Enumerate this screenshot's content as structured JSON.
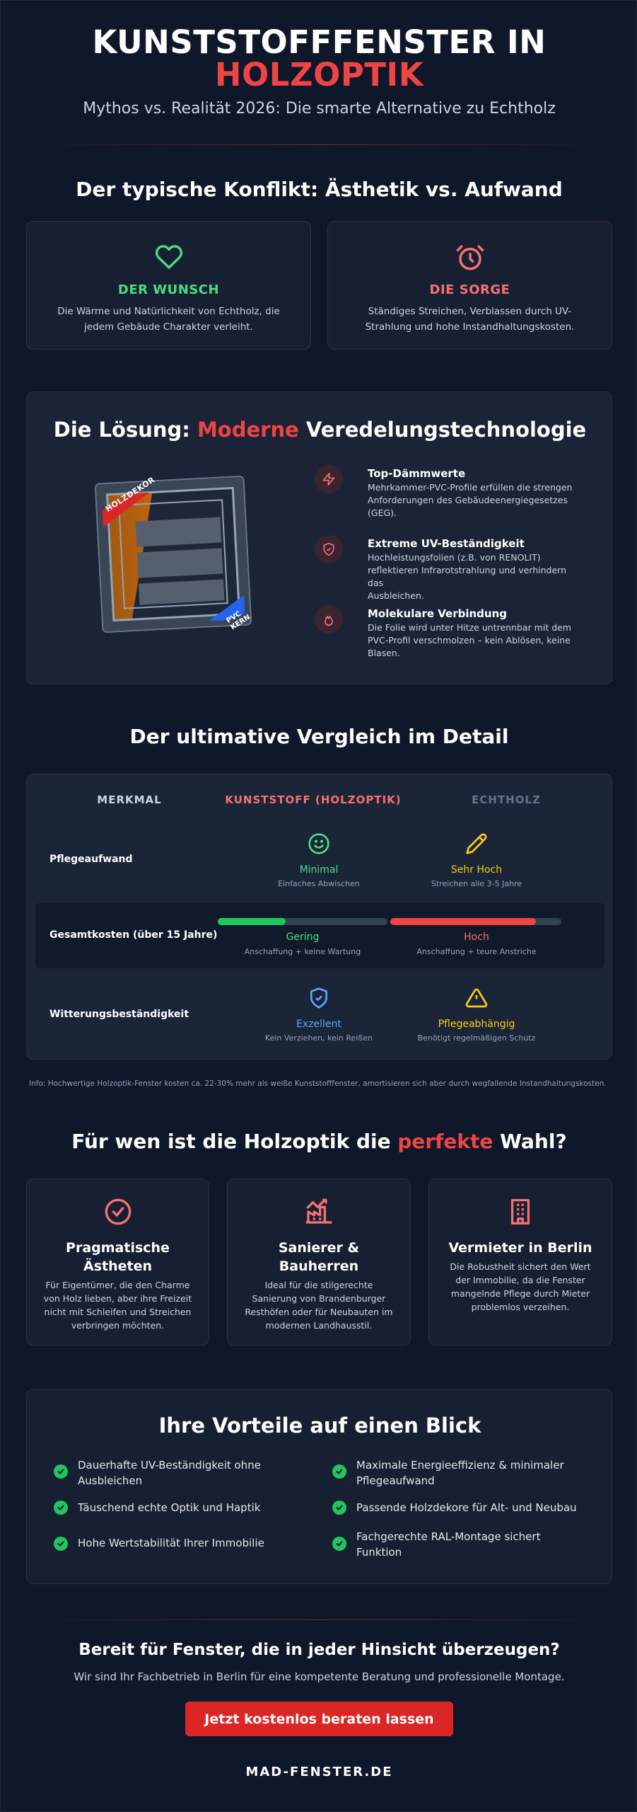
{
  "hero": {
    "title_line1": "KUNSTSTOFFFENSTER IN",
    "title_line2": "HOLZOPTIK",
    "subtitle": "Mythos vs. Realität 2026: Die smarte Alternative zu Echtholz"
  },
  "conflict": {
    "heading": "Der typische Konflikt: Ästhetik vs. Aufwand",
    "wish": {
      "icon": "heart-icon",
      "label": "DER WUNSCH",
      "text_line1": "Die Wärme und Natürlichkeit von Echtholz, die",
      "text_line2": "jedem Gebäude Charakter verleiht."
    },
    "worry": {
      "icon": "clock-alert-icon",
      "label": "DIE SORGE",
      "text_line1": "Ständiges Streichen, Verblassen durch UV-",
      "text_line2": "Strahlung und hohe Instandhaltungskosten."
    }
  },
  "solution": {
    "heading_pre": "Die Lösung: ",
    "heading_accent": "Moderne",
    "heading_post": " Veredelungstechnologie",
    "image_label_top": "HOLZDEKOR",
    "image_label_bottom": "PVC KERN",
    "features": [
      {
        "icon": "lightning-icon",
        "title": "Top-Dämmwerte",
        "line1": "Mehrkammer-PVC-Profile erfüllen die strengen",
        "line2": "Anforderungen des Gebäudeenergiegesetzes",
        "line3": "(GEG)."
      },
      {
        "icon": "shield-icon",
        "title": "Extreme UV-Beständigkeit",
        "line1": "Hochleistungsfolien (z.B. von RENOLIT)",
        "line2": "reflektieren Infrarotstrahlung und verhindern das",
        "line3": "Ausbleichen."
      },
      {
        "icon": "flame-icon",
        "title": "Molekulare Verbindung",
        "line1": "Die Folie wird unter Hitze untrennbar mit dem",
        "line2": "PVC-Profil verschmolzen – kein Ablösen, keine",
        "line3": "Blasen."
      }
    ]
  },
  "comparison": {
    "heading": "Der ultimative Vergleich im Detail",
    "col_feature": "MERKMAL",
    "col_plastic": "KUNSTSTOFF (HOLZOPTIK)",
    "col_wood": "ECHTHOLZ",
    "rows": [
      {
        "label": "Pflegeaufwand",
        "plastic_icon": "smile-icon",
        "plastic_value": "Minimal",
        "plastic_sub": "Einfaches Abwischen",
        "wood_icon": "pencil-icon",
        "wood_value": "Sehr Hoch",
        "wood_sub": "Streichen alle 3-5 Jahre"
      },
      {
        "label": "Gesamtkosten (über 15 Jahre)",
        "plastic_bar": 0.4,
        "plastic_value": "Gering",
        "plastic_sub": "Anschaffung + keine Wartung",
        "wood_bar": 0.85,
        "wood_value": "Hoch",
        "wood_sub": "Anschaffung + teure Anstriche"
      },
      {
        "label": "Witterungsbeständigkeit",
        "plastic_icon": "shield-check-icon",
        "plastic_value": "Exzellent",
        "plastic_sub": "Kein Verziehen, kein Reißen",
        "wood_icon": "warning-icon",
        "wood_value": "Pflegeabhängig",
        "wood_sub": "Benötigt regelmäßigen Schutz"
      }
    ],
    "footnote": "Info: Hochwertige Holzoptik-Fenster kosten ca. 22-30% mehr als weiße Kunststofffenster, amortisieren sich aber durch wegfallende Instandhaltungskosten."
  },
  "audience": {
    "heading_pre": "Für wen ist die Holzoptik die ",
    "heading_accent": "perfekte",
    "heading_post": " Wahl?",
    "cards": [
      {
        "icon": "check-circle-icon",
        "title_line1": "Pragmatische",
        "title_line2": "Ästheten",
        "lines": [
          "Für Eigentümer, die den Charme",
          "von Holz lieben, aber ihre Freizeit",
          "nicht mit Schleifen und Streichen",
          "verbringen möchten."
        ]
      },
      {
        "icon": "factory-icon",
        "title_line1": "Sanierer &",
        "title_line2": "Bauherren",
        "lines": [
          "Ideal für die stilgerechte",
          "Sanierung von Brandenburger",
          "Resthöfen oder für Neubauten im",
          "modernen Landhausstil."
        ]
      },
      {
        "icon": "building-icon",
        "title_line1": "Vermieter in Berlin",
        "title_line2": "",
        "lines": [
          "Die Robustheit sichert den Wert",
          "der Immobilie, da die Fenster",
          "mangelnde Pflege durch Mieter",
          "problemlos verzeihen."
        ]
      }
    ]
  },
  "benefits": {
    "heading": "Ihre Vorteile auf einen Blick",
    "items": [
      {
        "line1": "Dauerhafte UV-Beständigkeit ohne",
        "line2": "Ausbleichen"
      },
      {
        "line1": "Maximale Energieeffizienz & minimaler",
        "line2": "Pflegeaufwand"
      },
      {
        "line1": "Täuschend echte Optik und Haptik",
        "line2": ""
      },
      {
        "line1": "Passende Holzdekore für Alt- und Neubau",
        "line2": ""
      },
      {
        "line1": "Hohe Wertstabilität Ihrer Immobilie",
        "line2": ""
      },
      {
        "line1": "Fachgerechte RAL-Montage sichert",
        "line2": "Funktion"
      }
    ]
  },
  "cta": {
    "heading": "Bereit für Fenster, die in jeder Hinsicht überzeugen?",
    "text": "Wir sind Ihr Fachbetrieb in Berlin für eine kompetente Beratung und professionelle Montage.",
    "button": "Jetzt kostenlos beraten lassen",
    "footer": "MAD-FENSTER.DE"
  },
  "colors": {
    "background": "#0f172a",
    "card": "#172033",
    "accent_red": "#ef4444",
    "green": "#4ade80",
    "yellow": "#facc15",
    "blue": "#60a5fa"
  }
}
